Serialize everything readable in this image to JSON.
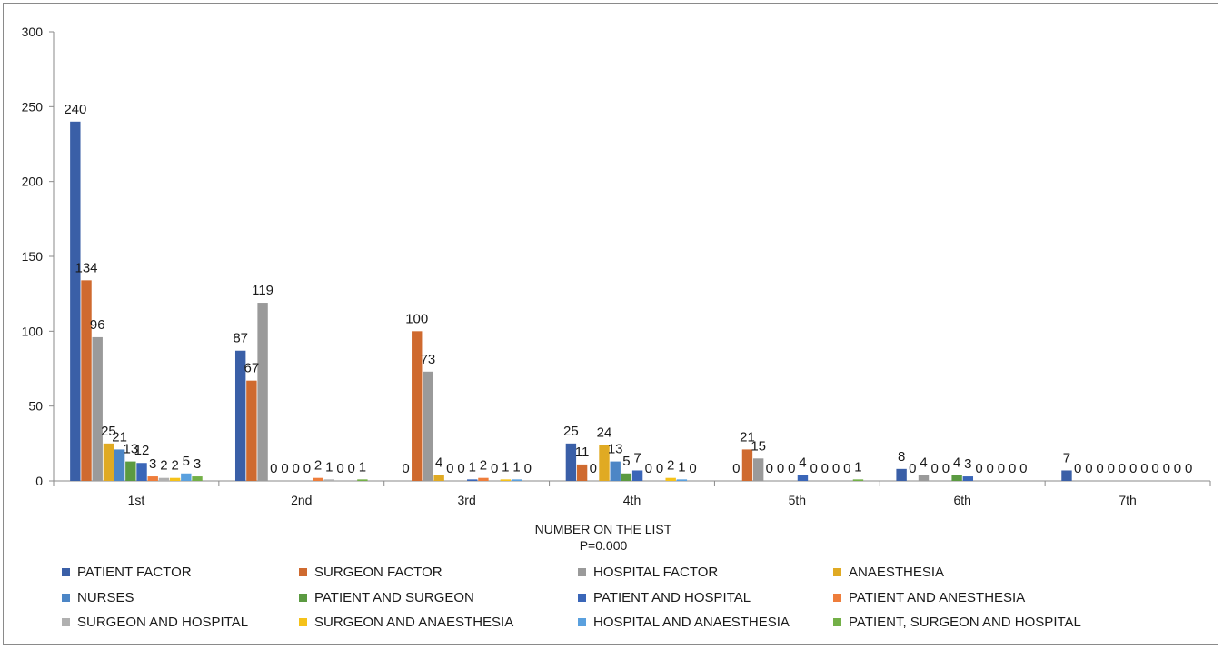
{
  "chart_data": {
    "type": "bar",
    "title": "",
    "xlabel": "NUMBER ON THE LIST",
    "xlabel_sub": "P=0.000",
    "ylabel": "",
    "ylim": [
      0,
      300
    ],
    "yticks": [
      "0",
      "50",
      "100",
      "150",
      "200",
      "250",
      "300"
    ],
    "grid": false,
    "legend_position": "bottom",
    "categories": [
      "1st",
      "2nd",
      "3rd",
      "4th",
      "5th",
      "6th",
      "7th"
    ],
    "series": [
      {
        "name": "PATIENT FACTOR",
        "color": "#3a5fa7",
        "values": [
          240,
          87,
          0,
          25,
          0,
          8,
          7
        ]
      },
      {
        "name": "SURGEON FACTOR",
        "color": "#cf6a2f",
        "values": [
          134,
          67,
          100,
          11,
          21,
          0,
          0
        ]
      },
      {
        "name": "HOSPITAL FACTOR",
        "color": "#9a9a9a",
        "values": [
          96,
          119,
          73,
          0,
          15,
          4,
          0
        ]
      },
      {
        "name": "ANAESTHESIA",
        "color": "#e0aa23",
        "values": [
          25,
          0,
          4,
          24,
          0,
          0,
          0
        ]
      },
      {
        "name": "NURSES",
        "color": "#4c86c6",
        "values": [
          21,
          0,
          0,
          13,
          0,
          0,
          0
        ]
      },
      {
        "name": "PATIENT AND SURGEON",
        "color": "#5b9a41",
        "values": [
          13,
          0,
          0,
          5,
          0,
          4,
          0
        ]
      },
      {
        "name": "PATIENT AND HOSPITAL",
        "color": "#3a66b8",
        "values": [
          12,
          0,
          1,
          7,
          4,
          3,
          0
        ]
      },
      {
        "name": "PATIENT AND ANESTHESIA",
        "color": "#ee7d3b",
        "values": [
          3,
          2,
          2,
          0,
          0,
          0,
          0
        ]
      },
      {
        "name": "SURGEON AND HOSPITAL",
        "color": "#b0b0b0",
        "values": [
          2,
          1,
          0,
          0,
          0,
          0,
          0
        ]
      },
      {
        "name": "SURGEON AND ANAESTHESIA",
        "color": "#f5c21a",
        "values": [
          2,
          0,
          1,
          2,
          0,
          0,
          0
        ]
      },
      {
        "name": "HOSPITAL AND ANAESTHESIA",
        "color": "#5aa0de",
        "values": [
          5,
          0,
          1,
          1,
          0,
          0,
          0
        ]
      },
      {
        "name": "PATIENT, SURGEON AND HOSPITAL",
        "color": "#73b047",
        "values": [
          3,
          1,
          0,
          0,
          1,
          0,
          0
        ]
      }
    ]
  }
}
